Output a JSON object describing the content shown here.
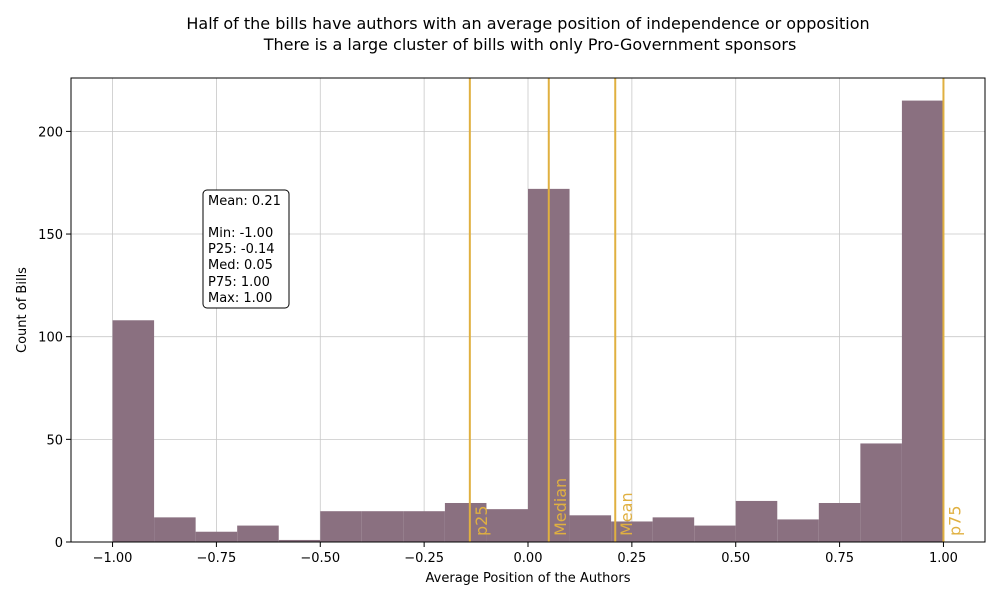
{
  "chart_data": {
    "type": "bar",
    "title": "Half of the bills have authors with an average position of independence or opposition",
    "subtitle": "There is a large cluster of bills with only Pro-Government sponsors",
    "xlabel": "Average Position of the Authors",
    "ylabel": "Count of Bills",
    "xlim": [
      -1.1,
      1.1
    ],
    "ylim": [
      0,
      226
    ],
    "grid": true,
    "bar_color": "#8a7080",
    "reference_color": "#e0b040",
    "xticks": [
      -1.0,
      -0.75,
      -0.5,
      -0.25,
      0.0,
      0.25,
      0.5,
      0.75,
      1.0
    ],
    "xtick_labels": [
      "−1.00",
      "−0.75",
      "−0.50",
      "−0.25",
      "0.00",
      "0.25",
      "0.50",
      "0.75",
      "1.00"
    ],
    "yticks": [
      0,
      50,
      100,
      150,
      200
    ],
    "ytick_labels": [
      "0",
      "50",
      "100",
      "150",
      "200"
    ],
    "bins": [
      {
        "start": -1.0,
        "end": -0.9,
        "count": 108
      },
      {
        "start": -0.9,
        "end": -0.8,
        "count": 12
      },
      {
        "start": -0.8,
        "end": -0.7,
        "count": 5
      },
      {
        "start": -0.7,
        "end": -0.6,
        "count": 8
      },
      {
        "start": -0.6,
        "end": -0.5,
        "count": 1
      },
      {
        "start": -0.5,
        "end": -0.4,
        "count": 15
      },
      {
        "start": -0.4,
        "end": -0.3,
        "count": 15
      },
      {
        "start": -0.3,
        "end": -0.2,
        "count": 15
      },
      {
        "start": -0.2,
        "end": -0.1,
        "count": 19
      },
      {
        "start": -0.1,
        "end": 0.0,
        "count": 16
      },
      {
        "start": 0.0,
        "end": 0.1,
        "count": 172
      },
      {
        "start": 0.1,
        "end": 0.2,
        "count": 13
      },
      {
        "start": 0.2,
        "end": 0.3,
        "count": 10
      },
      {
        "start": 0.3,
        "end": 0.4,
        "count": 12
      },
      {
        "start": 0.4,
        "end": 0.5,
        "count": 8
      },
      {
        "start": 0.5,
        "end": 0.6,
        "count": 20
      },
      {
        "start": 0.6,
        "end": 0.7,
        "count": 11
      },
      {
        "start": 0.7,
        "end": 0.8,
        "count": 19
      },
      {
        "start": 0.8,
        "end": 0.9,
        "count": 48
      },
      {
        "start": 0.9,
        "end": 1.0,
        "count": 215
      }
    ],
    "reference_lines": [
      {
        "label": "p25",
        "value": -0.14
      },
      {
        "label": "Median",
        "value": 0.05
      },
      {
        "label": "Mean",
        "value": 0.21
      },
      {
        "label": "p75",
        "value": 1.0
      }
    ],
    "stats_box": [
      "Mean: 0.21",
      "",
      "Min: -1.00",
      "P25: -0.14",
      "Med: 0.05",
      "P75: 1.00",
      "Max: 1.00"
    ]
  }
}
